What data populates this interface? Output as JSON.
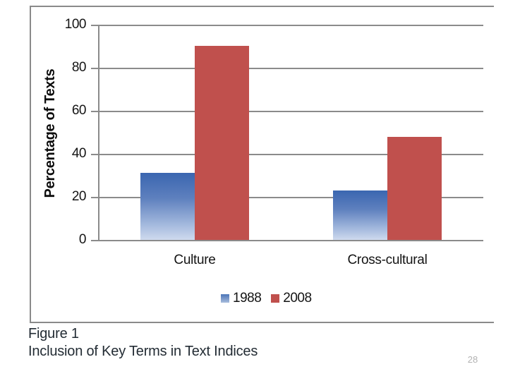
{
  "chart_data": {
    "type": "bar",
    "title": "",
    "categories": [
      "Culture",
      "Cross-cultural"
    ],
    "series": [
      {
        "name": "1988",
        "values": [
          31,
          23
        ],
        "fill": "gradient",
        "color_top": "#3a66b0",
        "color_bottom": "#cfdaee"
      },
      {
        "name": "2008",
        "values": [
          90,
          48
        ],
        "fill": "solid",
        "color": "#c0504d"
      }
    ],
    "xlabel": "",
    "ylabel": "Percentage of Texts",
    "ylim": [
      0,
      100
    ],
    "yticks": [
      100,
      80,
      60,
      40,
      20,
      0
    ],
    "grid": "horizontal",
    "legend_position": "bottom",
    "gridline_color": "#8b8b8b"
  },
  "caption": {
    "line1": "Figure 1",
    "line2": "Inclusion of Key Terms in Text Indices"
  },
  "page_number": "28"
}
